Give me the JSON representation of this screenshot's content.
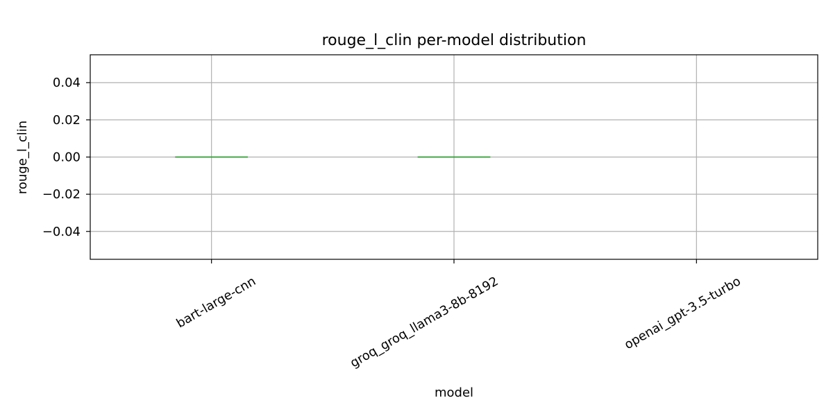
{
  "chart_data": {
    "type": "box",
    "title": "rouge_l_clin per-model distribution",
    "xlabel": "model",
    "ylabel": "rouge_l_clin",
    "categories": [
      "bart-large-cnn",
      "groq_groq_llama3-8b-8192",
      "openai_gpt-3.5-turbo"
    ],
    "medians": [
      0.0,
      0.0,
      null
    ],
    "ylim": [
      -0.055,
      0.055
    ],
    "yticks": [
      0.04,
      0.02,
      0.0,
      -0.02,
      -0.04
    ],
    "ytick_labels": [
      "0.04",
      "0.02",
      "0.00",
      "−0.02",
      "−0.04"
    ],
    "grid": true,
    "legend": "none",
    "colors": {
      "median": "#2ca02c",
      "grid": "#b0b0b0",
      "frame": "#000000"
    }
  }
}
